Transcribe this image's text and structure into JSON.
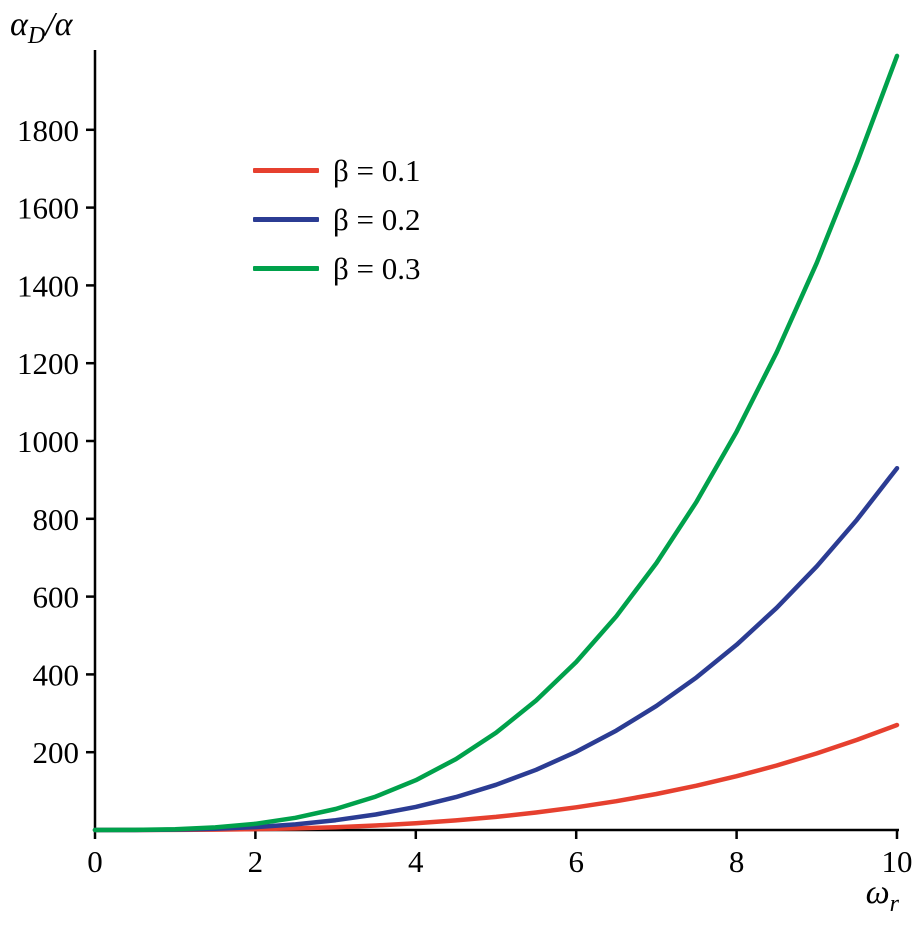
{
  "chart_data": {
    "type": "line",
    "title": "",
    "xlabel_parts": {
      "base": "ω",
      "sub": "r"
    },
    "ylabel_parts": {
      "base": "α",
      "sub": "D",
      "suffix": "/α"
    },
    "xlim": [
      0,
      10
    ],
    "ylim": [
      0,
      2000
    ],
    "xticks": [
      0,
      2,
      4,
      6,
      8,
      10
    ],
    "yticks": [
      200,
      400,
      600,
      800,
      1000,
      1200,
      1400,
      1600,
      1800
    ],
    "grid": false,
    "legend_position": "upper-left",
    "x": [
      0,
      0.5,
      1,
      1.5,
      2,
      2.5,
      3,
      3.5,
      4,
      4.5,
      5,
      5.5,
      6,
      6.5,
      7,
      7.5,
      8,
      8.5,
      9,
      9.5,
      10
    ],
    "series": [
      {
        "name": "β = 0.1",
        "color": "#e6402f",
        "values": [
          0,
          0.03,
          0.27,
          0.9,
          2.2,
          4.2,
          7.3,
          11.6,
          17.3,
          24.6,
          33.8,
          44.9,
          58.3,
          74.1,
          92.6,
          113.9,
          138.2,
          165.8,
          196.8,
          231.5,
          270
        ]
      },
      {
        "name": "β = 0.2",
        "color": "#2b3c93",
        "values": [
          0,
          0.12,
          0.93,
          3.1,
          7.4,
          14.5,
          25.1,
          39.9,
          59.5,
          84.7,
          116.3,
          154.7,
          200.9,
          255.4,
          319,
          392.3,
          476.2,
          571.1,
          678,
          797.4,
          930
        ]
      },
      {
        "name": "β = 0.3",
        "color": "#00a14b",
        "values": [
          0,
          0.25,
          2,
          6.8,
          16,
          31.3,
          54,
          85.8,
          128,
          182.3,
          250,
          332.8,
          432,
          549.3,
          686,
          843.8,
          1024,
          1228,
          1458,
          1715,
          1990
        ]
      }
    ]
  }
}
